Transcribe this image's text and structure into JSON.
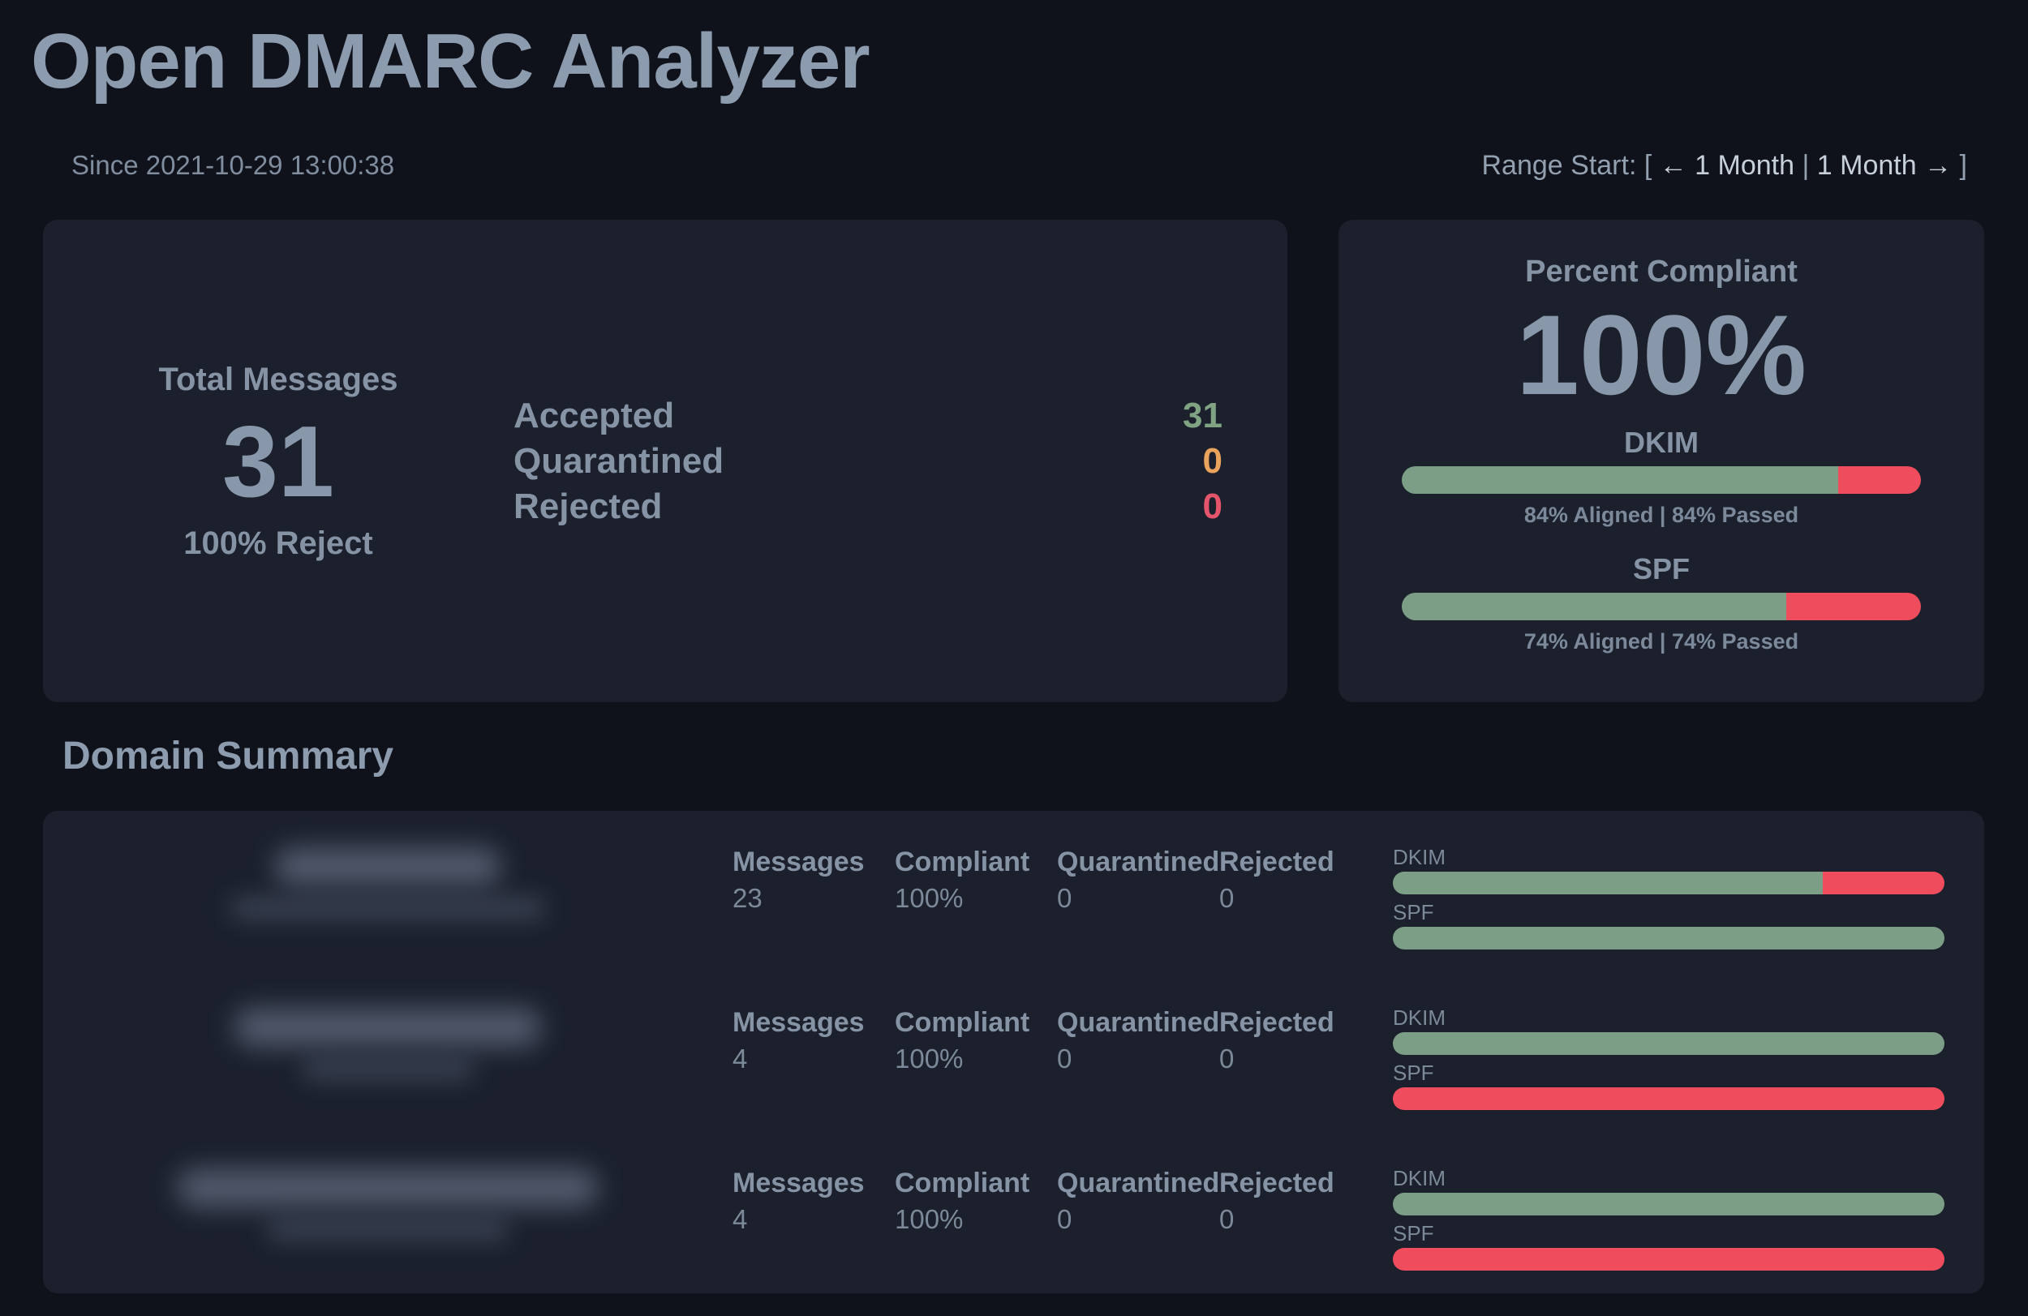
{
  "header": {
    "title": "Open DMARC Analyzer",
    "since": "Since 2021-10-29 13:00:38",
    "range": {
      "prefix": "Range Start: [ ",
      "prev_label": "← 1 Month",
      "separator": " | ",
      "next_label": "1 Month →",
      "suffix": " ]"
    }
  },
  "totals_card": {
    "total_label": "Total Messages",
    "total_value": "31",
    "policy_text": "100% Reject",
    "dispositions": [
      {
        "label": "Accepted",
        "value": "31",
        "color": "#7fa383"
      },
      {
        "label": "Quarantined",
        "value": "0",
        "color": "#e9a35c"
      },
      {
        "label": "Rejected",
        "value": "0",
        "color": "#e4556b"
      }
    ]
  },
  "compliance_card": {
    "title": "Percent Compliant",
    "percent": "100%",
    "bars": [
      {
        "label": "DKIM",
        "aligned_pct": 84,
        "passed_pct": 84,
        "green_width": "84%",
        "caption": "84% Aligned | 84% Passed"
      },
      {
        "label": "SPF",
        "aligned_pct": 74,
        "passed_pct": 74,
        "green_width": "74%",
        "caption": "74% Aligned | 74% Passed"
      }
    ]
  },
  "domain_summary": {
    "heading": "Domain Summary",
    "columns": {
      "messages": "Messages",
      "compliant": "Compliant",
      "quarantined": "Quarantined",
      "rejected": "Rejected"
    },
    "bar_labels": {
      "dkim": "DKIM",
      "spf": "SPF"
    },
    "rows": [
      {
        "domain_redacted": true,
        "messages": "23",
        "compliant": "100%",
        "quarantined": "0",
        "rejected": "0",
        "dkim_green_width": "78%",
        "spf_green_width": "100%"
      },
      {
        "domain_redacted": true,
        "messages": "4",
        "compliant": "100%",
        "quarantined": "0",
        "rejected": "0",
        "dkim_green_width": "100%",
        "spf_green_width": "0%"
      },
      {
        "domain_redacted": true,
        "messages": "4",
        "compliant": "100%",
        "quarantined": "0",
        "rejected": "0",
        "dkim_green_width": "100%",
        "spf_green_width": "0%"
      }
    ]
  },
  "colors": {
    "page_background": "#10121b",
    "card_background": "#1b202c",
    "heading_text": "#8c9bad",
    "label_text": "#8593a5",
    "link_text": "#c7d0da",
    "pass_green": "#7c9e86",
    "fail_red": "#ef4d5e",
    "quarantine_orange": "#e9a35c"
  }
}
